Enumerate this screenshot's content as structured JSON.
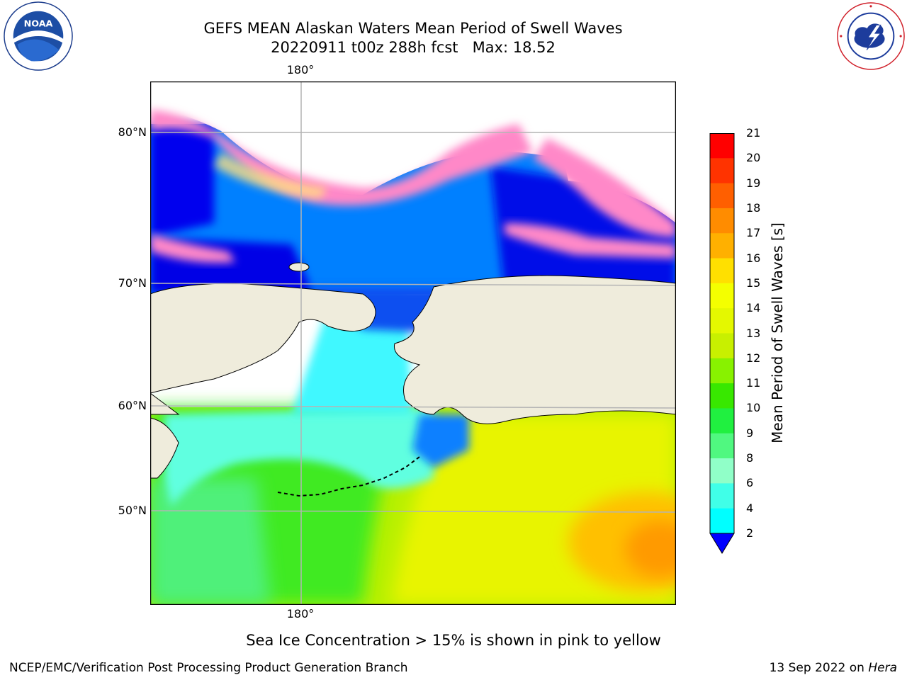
{
  "header": {
    "title_line1": "GEFS MEAN Alaskan Waters Mean Period of Swell Waves",
    "title_line2": "20220911 t00z 288h fcst   Max: 18.52"
  },
  "logos": {
    "noaa": {
      "text": "NOAA",
      "ring_top": "NATIONAL OCEANIC AND ATMOSPHERIC ADMINISTRATION",
      "ring_bottom": "U.S. DEPARTMENT OF COMMERCE"
    },
    "nws": {
      "ring_text": "NATIONAL WEATHER SERVICE"
    }
  },
  "map": {
    "lon_label_top": "180°",
    "lon_label_bottom": "180°",
    "lat_labels": [
      "80°N",
      "70°N",
      "60°N",
      "50°N"
    ],
    "land_color": "#efecdc",
    "grid_color": "#b4b4b4"
  },
  "colorbar": {
    "label": "Mean Period of Swell Waves [s]",
    "ticks": [
      "21",
      "20",
      "19",
      "18",
      "17",
      "16",
      "15",
      "14",
      "13",
      "12",
      "11",
      "10",
      "9",
      "8",
      "6",
      "4",
      "2"
    ],
    "colors": [
      "#ff0000",
      "#ff3300",
      "#ff5f00",
      "#ff8c00",
      "#ffb000",
      "#ffe000",
      "#f4ff00",
      "#e4f800",
      "#c8f000",
      "#88f200",
      "#38e800",
      "#20f040",
      "#50f880",
      "#90ffc8",
      "#40ffe8",
      "#00ffff",
      "#00c8ff",
      "#0080ff"
    ],
    "extend_color": "#0000ff"
  },
  "note": "Sea Ice Concentration > 15% is shown in pink to yellow",
  "footer": {
    "left": "NCEP/EMC/Verification Post Processing Product Generation Branch",
    "right_prefix": "13 Sep 2022 on ",
    "right_host": "Hera"
  }
}
